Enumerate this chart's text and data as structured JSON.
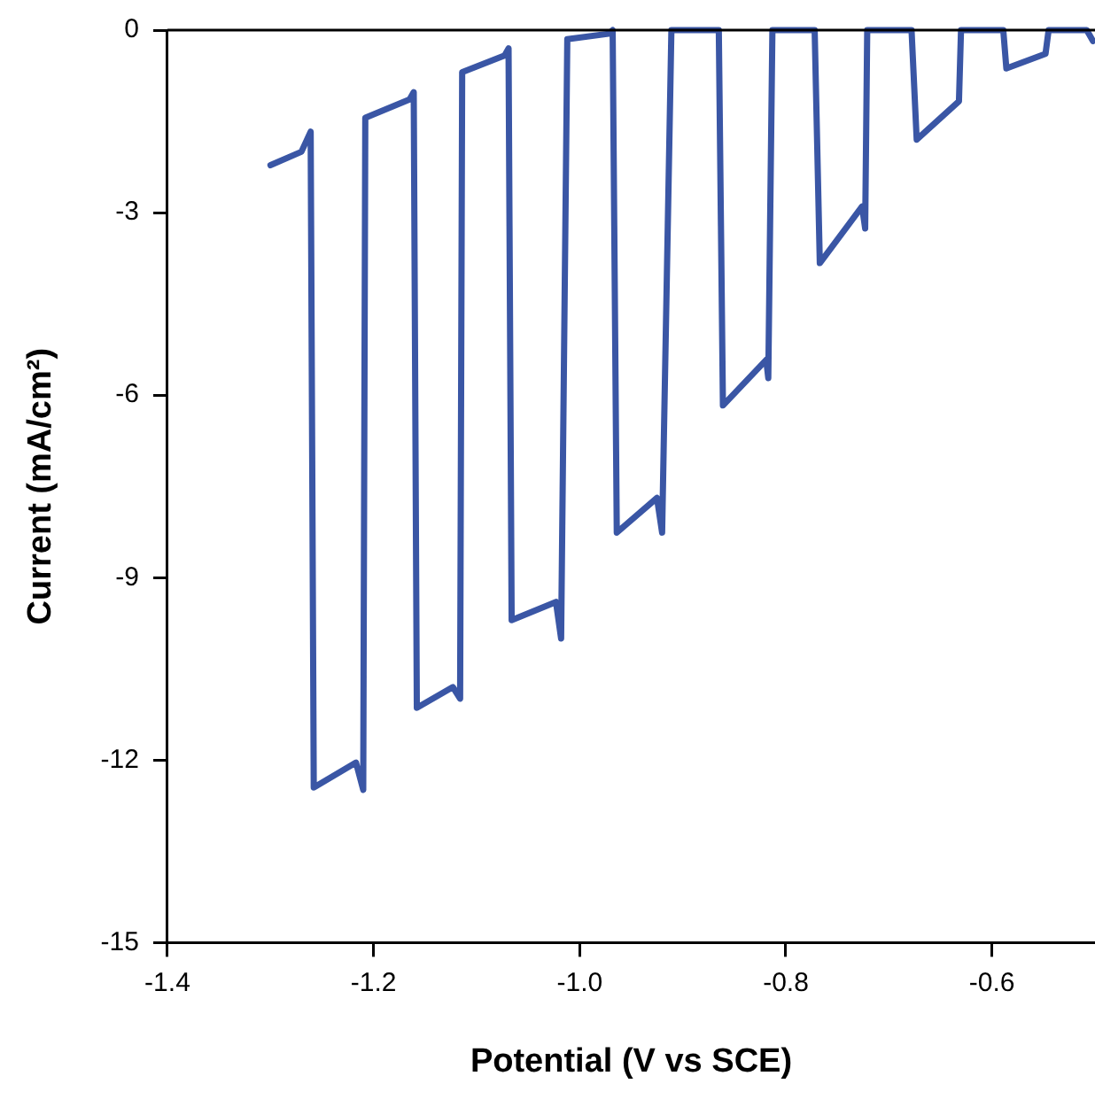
{
  "chart_data": {
    "type": "line",
    "xlabel": "Potential (V vs SCE)",
    "ylabel": "Current (mA/cm²)",
    "xlim": [
      -1.4,
      -0.5
    ],
    "xticks": [
      -1.4,
      -1.2,
      {
        "value": -1,
        "label": "-1.0"
      },
      -0.8,
      -0.6
    ],
    "ylim": [
      -15,
      0
    ],
    "yticks": [
      -15,
      -12,
      -9,
      -6,
      -3,
      0
    ],
    "grid": false,
    "legend": false,
    "marker": "none",
    "line_style": "solid",
    "series": [
      {
        "color": "#3a56a5",
        "x": [
          -1.3,
          -1.27,
          -1.261,
          -1.258,
          -1.217,
          -1.21,
          -1.208,
          -1.165,
          -1.161,
          -1.158,
          -1.123,
          -1.116,
          -1.114,
          -1.073,
          -1.069,
          -1.066,
          -1.023,
          -1.018,
          -1.012,
          -0.972,
          -0.968,
          -0.964,
          -0.925,
          -0.92,
          -0.911,
          -0.865,
          -0.861,
          -0.819,
          -0.817,
          -0.813,
          -0.772,
          -0.767,
          -0.726,
          -0.723,
          -0.721,
          -0.678,
          -0.673,
          -0.632,
          -0.63,
          -0.589,
          -0.586,
          -0.548,
          -0.545,
          -0.508,
          -0.502
        ],
        "values": [
          -2.22,
          -2.0,
          -1.67,
          -12.45,
          -12.04,
          -12.49,
          -1.44,
          -1.14,
          -1.02,
          -11.14,
          -10.8,
          -10.99,
          -0.69,
          -0.42,
          -0.3,
          -9.7,
          -9.4,
          -10.0,
          -0.15,
          -0.06,
          0,
          -8.26,
          -7.69,
          -8.26,
          0,
          0,
          -6.17,
          -5.42,
          -5.72,
          0,
          0,
          -3.83,
          -2.9,
          -3.26,
          0,
          0,
          -1.8,
          -1.17,
          0,
          0,
          -0.63,
          -0.39,
          0,
          0,
          -0.18
        ]
      }
    ]
  }
}
